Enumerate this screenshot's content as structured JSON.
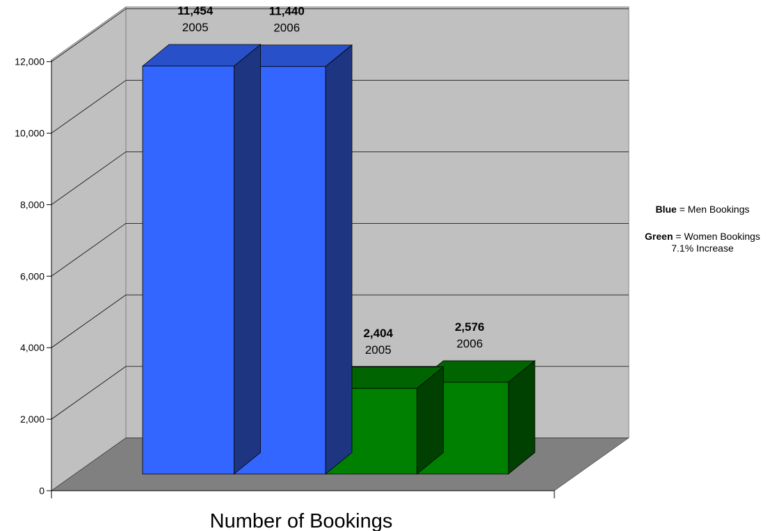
{
  "chart_data": {
    "type": "bar",
    "title": "",
    "xlabel": "Number of Bookings",
    "ylabel": "",
    "ylim": [
      0,
      12000
    ],
    "y_ticks": [
      "0",
      "2,000",
      "4,000",
      "6,000",
      "8,000",
      "10,000",
      "12,000"
    ],
    "y_tick_values": [
      0,
      2000,
      4000,
      6000,
      8000,
      10000,
      12000
    ],
    "grid": true,
    "three_d": true,
    "legend_placement": "right",
    "bars": [
      {
        "group": "Men Bookings",
        "year": "2005",
        "value": 11454,
        "value_label": "11,454",
        "color": "#3366FF"
      },
      {
        "group": "Men Bookings",
        "year": "2006",
        "value": 11440,
        "value_label": "11,440",
        "color": "#3366FF"
      },
      {
        "group": "Women Bookings",
        "year": "2005",
        "value": 2404,
        "value_label": "2,404",
        "color": "#008000"
      },
      {
        "group": "Women Bookings",
        "year": "2006",
        "value": 2576,
        "value_label": "2,576",
        "color": "#008000"
      }
    ],
    "legend": [
      {
        "key": "Blue",
        "text": "= Men Bookings",
        "note": ""
      },
      {
        "key": "Green",
        "text": "= Women Bookings",
        "note": "7.1% Increase"
      }
    ]
  },
  "colors": {
    "wall": "#C0C0C0",
    "floor": "#808080",
    "blue_front": "#3366FF",
    "blue_top": "#2850C8",
    "blue_side": "#1E3582",
    "green_front": "#008000",
    "green_top": "#006400",
    "green_side": "#004000"
  }
}
